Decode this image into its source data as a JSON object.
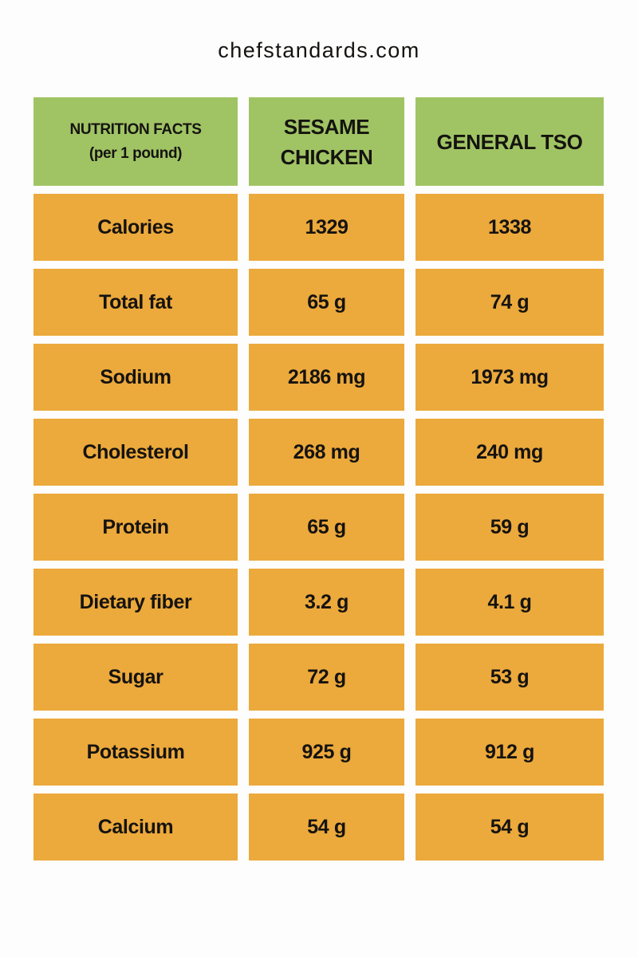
{
  "site": {
    "title": "chefstandards.com"
  },
  "table": {
    "header": {
      "col1_line1": "NUTRITION FACTS",
      "col1_line2": "(per 1 pound)",
      "col2": "SESAME CHICKEN",
      "col3": "GENERAL TSO"
    },
    "rows": [
      {
        "label": "Calories",
        "sesame": "1329",
        "general": "1338"
      },
      {
        "label": "Total fat",
        "sesame": "65 g",
        "general": "74 g"
      },
      {
        "label": "Sodium",
        "sesame": "2186 mg",
        "general": "1973 mg"
      },
      {
        "label": "Cholesterol",
        "sesame": "268 mg",
        "general": "240 mg"
      },
      {
        "label": "Protein",
        "sesame": "65 g",
        "general": "59 g"
      },
      {
        "label": "Dietary fiber",
        "sesame": "3.2 g",
        "general": "4.1 g"
      },
      {
        "label": "Sugar",
        "sesame": "72 g",
        "general": "53 g"
      },
      {
        "label": "Potassium",
        "sesame": "925 g",
        "general": "912 g"
      },
      {
        "label": "Calcium",
        "sesame": "54 g",
        "general": "54 g"
      }
    ]
  },
  "colors": {
    "header_bg": "#a0c464",
    "cell_bg": "#eca93c",
    "text": "#151310"
  },
  "chart_data": {
    "type": "table",
    "title": "NUTRITION FACTS (per 1 pound)",
    "columns": [
      "NUTRITION FACTS (per 1 pound)",
      "SESAME CHICKEN",
      "GENERAL TSO"
    ],
    "rows": [
      [
        "Calories",
        "1329",
        "1338"
      ],
      [
        "Total fat",
        "65 g",
        "74 g"
      ],
      [
        "Sodium",
        "2186 mg",
        "1973 mg"
      ],
      [
        "Cholesterol",
        "268 mg",
        "240 mg"
      ],
      [
        "Protein",
        "65 g",
        "59 g"
      ],
      [
        "Dietary fiber",
        "3.2 g",
        "4.1 g"
      ],
      [
        "Sugar",
        "72 g",
        "53 g"
      ],
      [
        "Potassium",
        "925 g",
        "912 g"
      ],
      [
        "Calcium",
        "54 g",
        "54 g"
      ]
    ]
  }
}
